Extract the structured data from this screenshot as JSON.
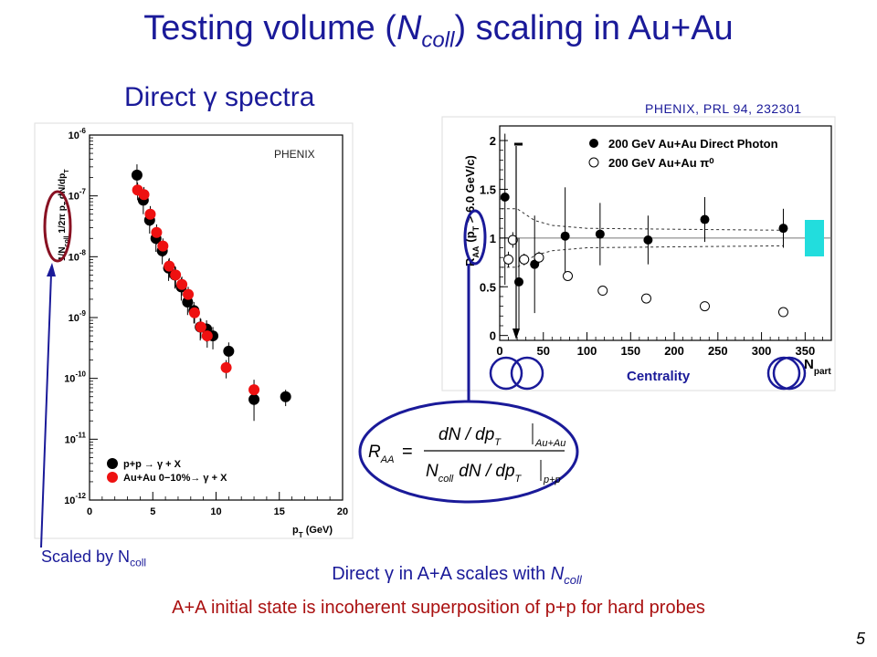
{
  "slide": {
    "title_parts": {
      "a": "Testing volume (",
      "n": "N",
      "sub": "coll",
      "b": ") scaling in Au+Au"
    },
    "spectra_heading": "Direct γ spectra",
    "reference": "PHENIX, PRL 94, 232301",
    "scaled_by": {
      "text": "Scaled by N",
      "sub": "coll"
    },
    "scales_statement": {
      "text": "Direct γ in A+A scales with ",
      "n": "N",
      "sub": "coll"
    },
    "conclusion": "A+A initial state is incoherent superposition of p+p for hard probes",
    "page_number": "5",
    "centrality_label": "Centrality",
    "formula": {
      "lhs": "R",
      "lhs_sub": "AA",
      "equals": "=",
      "num": "dN / dp",
      "num_sub": "T",
      "num_eval": "Au+Au",
      "den_ncoll": "N",
      "den_ncoll_sub": "coll",
      "den": "dN / dp",
      "den_sub": "T",
      "den_eval": "p+p"
    }
  },
  "colors": {
    "title": "#1a1a99",
    "conclusion": "#aa1111",
    "pp": "#000000",
    "auau": "#ee1111",
    "ellipse_red": "#881122",
    "ellipse_blue": "#1a1a99",
    "syst_box": "#22dddd"
  },
  "chart_data": [
    {
      "type": "scatter",
      "label": "PHENIX",
      "xlabel": "p",
      "xlabel_sub": "T",
      "xlabel_unit": "(GeV)",
      "ylabel": "1/N",
      "ylabel_sub": "coll",
      "ylabel_rest": "1/2π p",
      "ylabel_sub2": "T",
      "ylabel_tail": "dN/dp",
      "ylabel_sub3": "T",
      "xlim": [
        0,
        20
      ],
      "ylim_log10": [
        -12,
        -6
      ],
      "y_scale": "log",
      "xticks": [
        "0",
        "5",
        "10",
        "15",
        "20"
      ],
      "yticks": [
        {
          "base": "10",
          "exp": "-12"
        },
        {
          "base": "10",
          "exp": "-11"
        },
        {
          "base": "10",
          "exp": "-10"
        },
        {
          "base": "10",
          "exp": "-9"
        },
        {
          "base": "10",
          "exp": "-8"
        },
        {
          "base": "10",
          "exp": "-7"
        },
        {
          "base": "10",
          "exp": "-6"
        }
      ],
      "legend_position": "bottom-left",
      "series": [
        {
          "name": "p+p → γ + X",
          "x": [
            3.75,
            4.25,
            4.75,
            5.25,
            5.75,
            6.25,
            6.75,
            7.25,
            7.75,
            8.25,
            8.75,
            9.25,
            9.75,
            11.0,
            13.0,
            15.5
          ],
          "y": [
            2.2e-07,
            8.5e-08,
            4e-08,
            2e-08,
            1.25e-08,
            6.5e-09,
            5e-09,
            3.2e-09,
            1.8e-09,
            1.3e-09,
            7e-10,
            6.5e-10,
            5e-10,
            2.8e-10,
            4.5e-11,
            5e-11
          ],
          "err_low": [
            1.1e-07,
            3.5e-08,
            1.6e-08,
            8e-09,
            5e-09,
            2.5e-09,
            2e-09,
            1.3e-09,
            7e-10,
            5e-10,
            2.8e-10,
            2.5e-10,
            2e-10,
            1.1e-10,
            2.5e-11,
            1.5e-11
          ],
          "err_high": [
            1.1e-07,
            3.5e-08,
            1.6e-08,
            8e-09,
            5e-09,
            2.5e-09,
            2e-09,
            1.3e-09,
            7e-10,
            5e-10,
            2.8e-10,
            2.5e-10,
            2e-10,
            1.1e-10,
            2.5e-11,
            1.5e-11
          ]
        },
        {
          "name": "Au+Au 0−10%→ γ + X",
          "x": [
            3.8,
            4.3,
            4.8,
            5.3,
            5.8,
            6.3,
            6.8,
            7.3,
            7.8,
            8.3,
            8.8,
            9.3,
            10.8,
            13.0
          ],
          "y": [
            1.25e-07,
            1.05e-07,
            5e-08,
            2.5e-08,
            1.5e-08,
            7e-09,
            5e-09,
            3.5e-09,
            2.4e-09,
            1.2e-09,
            7e-10,
            5e-10,
            1.5e-10,
            6.5e-11
          ],
          "err_low": [
            4e-08,
            3.5e-08,
            1.8e-08,
            9e-09,
            5e-09,
            2.5e-09,
            1.8e-09,
            1.2e-09,
            8e-10,
            4e-10,
            2.5e-10,
            1.8e-10,
            5e-11,
            3e-11
          ],
          "err_high": [
            4e-08,
            3.5e-08,
            1.8e-08,
            9e-09,
            5e-09,
            2.5e-09,
            1.8e-09,
            1.2e-09,
            8e-10,
            4e-10,
            2.5e-10,
            1.8e-10,
            5e-11,
            3e-11
          ]
        }
      ]
    },
    {
      "type": "scatter",
      "xlabel": "N",
      "xlabel_sub": "part",
      "ylabel": "R",
      "ylabel_sub": "AA",
      "ylabel_cond": "(p",
      "ylabel_cond_sub": "T",
      "ylabel_cond_rest": " > 6.0 GeV/c)",
      "xlim": [
        0,
        380
      ],
      "ylim": [
        -0.05,
        2.15
      ],
      "xticks": [
        "0",
        "50",
        "100",
        "150",
        "200",
        "250",
        "300",
        "350"
      ],
      "yticks": [
        "0",
        "0.5",
        "1",
        "1.5",
        "2"
      ],
      "reference_line": 1.0,
      "legend_position": "top-right",
      "series": [
        {
          "name": "200 GeV Au+Au Direct Photon",
          "x": [
            6,
            22,
            40,
            75,
            115,
            170,
            235,
            325
          ],
          "y": [
            1.42,
            0.55,
            0.73,
            1.02,
            1.04,
            0.98,
            1.19,
            1.1
          ],
          "err_low": [
            0.9,
            0.5,
            0.5,
            0.45,
            0.32,
            0.25,
            0.23,
            0.2
          ],
          "err_high": [
            0.65,
            0.45,
            0.5,
            0.5,
            0.32,
            0.25,
            0.23,
            0.2
          ]
        },
        {
          "name": "200 GeV Au+Au π⁰",
          "x": [
            10,
            15,
            28,
            45,
            78,
            118,
            168,
            235,
            325
          ],
          "y": [
            0.78,
            0.98,
            0.78,
            0.8,
            0.61,
            0.46,
            0.38,
            0.3,
            0.24
          ],
          "err_low": [
            0.08,
            0.08,
            0.06,
            0.06,
            0.04,
            0.03,
            0.02,
            0.02,
            0.02
          ],
          "err_high": [
            0.08,
            0.08,
            0.06,
            0.06,
            0.04,
            0.03,
            0.02,
            0.02,
            0.02
          ]
        }
      ]
    }
  ]
}
